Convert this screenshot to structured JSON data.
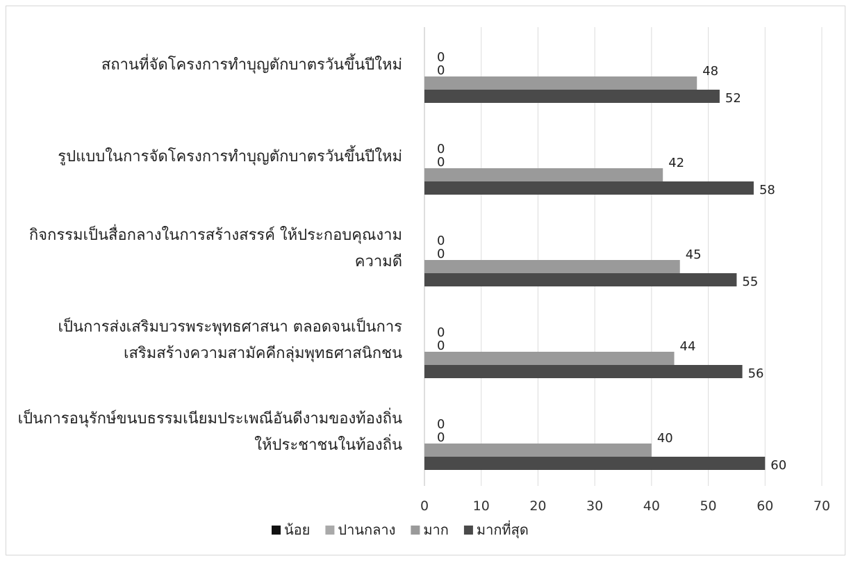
{
  "chart_data": {
    "type": "bar",
    "orientation": "horizontal",
    "categories": [
      [
        "สถานที่จัดโครงการทำบุญตักบาตรวันขึ้นปีใหม่"
      ],
      [
        "รูปแบบในการจัดโครงการทำบุญตักบาตรวันขึ้นปีใหม่"
      ],
      [
        "กิจกรรมเป็นสื่อกลางในการสร้างสรรค์ ให้ประกอบคุณงาม",
        "ความดี"
      ],
      [
        "เป็นการส่งเสริมบวรพระพุทธศาสนา ตลอดจนเป็นการ",
        "เสริมสร้างความสามัคคีกลุ่มพุทธศาสนิกชน"
      ],
      [
        "เป็นการอนุรักษ์ขนบธรรมเนียมประเพณีอันดีงามของท้องถิ่น",
        "ให้ประชาชนในท้องถิ่น"
      ]
    ],
    "series": [
      {
        "name": "น้อย",
        "color": "#111111",
        "values": [
          0,
          0,
          0,
          0,
          0
        ]
      },
      {
        "name": "ปานกลาง",
        "color": "#a9a9a9",
        "values": [
          0,
          0,
          0,
          0,
          0
        ]
      },
      {
        "name": "มาก",
        "color": "#9a9a9a",
        "values": [
          48,
          42,
          45,
          44,
          40
        ]
      },
      {
        "name": "มากที่สุด",
        "color": "#4a4a4a",
        "values": [
          52,
          58,
          55,
          56,
          60
        ]
      }
    ],
    "xlim": [
      0,
      70
    ],
    "xticks": [
      "0",
      "10",
      "20",
      "30",
      "40",
      "50",
      "60",
      "70"
    ],
    "grid": "vertical",
    "legend": "bottom"
  }
}
